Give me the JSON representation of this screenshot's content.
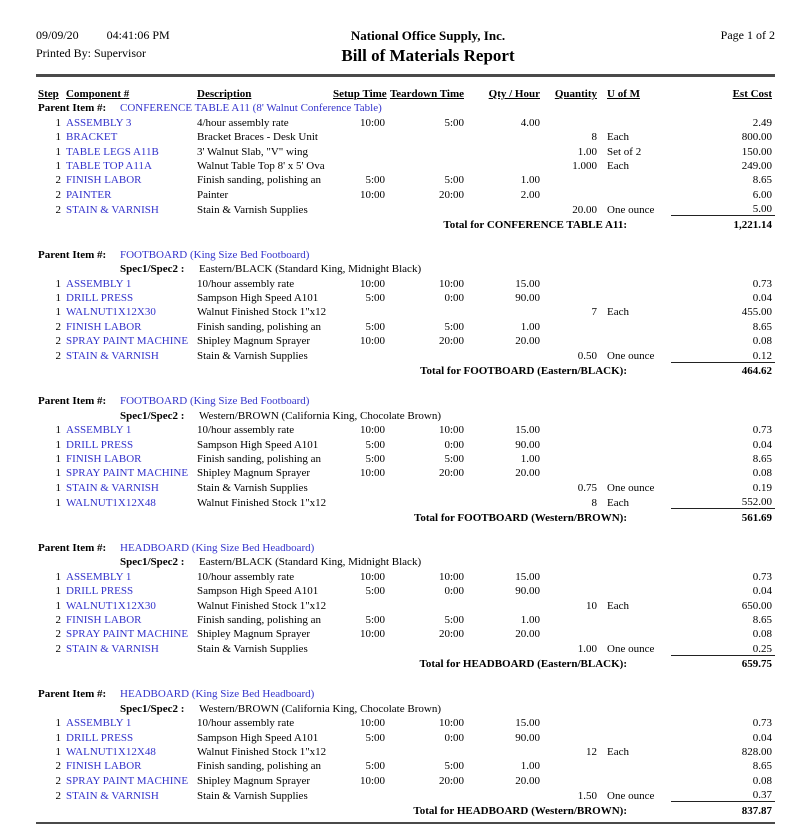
{
  "header": {
    "date": "09/09/20",
    "time": "04:41:06 PM",
    "company": "National Office Supply, Inc.",
    "page": "Page 1 of 2",
    "printed_by": "Printed By: Supervisor",
    "title": "Bill of Materials Report"
  },
  "colors": {
    "link_blue": "#3333cc",
    "rule_gray": "#4a4a4a"
  },
  "columns": [
    "Step",
    "Component #",
    "Description",
    "Setup Time",
    "Teardown Time",
    "Qty / Hour",
    "Quantity",
    "U of M",
    "Est Cost"
  ],
  "report": {
    "parent_item_label": "Parent Item #:",
    "spec_label": "Spec1/Spec2 :",
    "sections": [
      {
        "parent_item": "CONFERENCE TABLE A11 (8' Walnut Conference Table)",
        "spec": null,
        "rows": [
          {
            "step": "1",
            "component": "ASSEMBLY 3",
            "description": "4/hour assembly rate",
            "setup_time": "10:00",
            "teardown_time": "5:00",
            "qty_hour": "4.00",
            "quantity": "",
            "uofm": "",
            "est_cost": "2.49"
          },
          {
            "step": "1",
            "component": "BRACKET",
            "description": "Bracket Braces - Desk Unit",
            "setup_time": "",
            "teardown_time": "",
            "qty_hour": "",
            "quantity": "8",
            "uofm": "Each",
            "est_cost": "800.00"
          },
          {
            "step": "1",
            "component": "TABLE LEGS A11B",
            "description": "3' Walnut Slab, \"V\" wing",
            "setup_time": "",
            "teardown_time": "",
            "qty_hour": "",
            "quantity": "1.00",
            "uofm": "Set of 2",
            "est_cost": "150.00"
          },
          {
            "step": "1",
            "component": "TABLE TOP A11A",
            "description": "Walnut Table Top 8' x 5' Ova",
            "setup_time": "",
            "teardown_time": "",
            "qty_hour": "",
            "quantity": "1.000",
            "uofm": "Each",
            "est_cost": "249.00"
          },
          {
            "step": "2",
            "component": "FINISH LABOR",
            "description": "Finish sanding, polishing an",
            "setup_time": "5:00",
            "teardown_time": "5:00",
            "qty_hour": "1.00",
            "quantity": "",
            "uofm": "",
            "est_cost": "8.65"
          },
          {
            "step": "2",
            "component": "PAINTER",
            "description": "Painter",
            "setup_time": "10:00",
            "teardown_time": "20:00",
            "qty_hour": "2.00",
            "quantity": "",
            "uofm": "",
            "est_cost": "6.00"
          },
          {
            "step": "2",
            "component": "STAIN & VARNISH",
            "description": "Stain & Varnish Supplies",
            "setup_time": "",
            "teardown_time": "",
            "qty_hour": "",
            "quantity": "20.00",
            "uofm": "One ounce",
            "est_cost": "5.00"
          }
        ],
        "total_label": "Total for CONFERENCE TABLE A11:",
        "total": "1,221.14"
      },
      {
        "parent_item": "FOOTBOARD (King Size Bed Footboard)",
        "spec": "Eastern/BLACK (Standard King, Midnight Black)",
        "rows": [
          {
            "step": "1",
            "component": "ASSEMBLY 1",
            "description": "10/hour assembly rate",
            "setup_time": "10:00",
            "teardown_time": "10:00",
            "qty_hour": "15.00",
            "quantity": "",
            "uofm": "",
            "est_cost": "0.73"
          },
          {
            "step": "1",
            "component": "DRILL PRESS",
            "description": "Sampson High Speed A101",
            "setup_time": "5:00",
            "teardown_time": "0:00",
            "qty_hour": "90.00",
            "quantity": "",
            "uofm": "",
            "est_cost": "0.04"
          },
          {
            "step": "1",
            "component": "WALNUT1X12X30",
            "description": "Walnut Finished Stock 1\"x12",
            "setup_time": "",
            "teardown_time": "",
            "qty_hour": "",
            "quantity": "7",
            "uofm": "Each",
            "est_cost": "455.00"
          },
          {
            "step": "2",
            "component": "FINISH LABOR",
            "description": "Finish sanding, polishing an",
            "setup_time": "5:00",
            "teardown_time": "5:00",
            "qty_hour": "1.00",
            "quantity": "",
            "uofm": "",
            "est_cost": "8.65"
          },
          {
            "step": "2",
            "component": "SPRAY PAINT MACHINE",
            "description": "Shipley Magnum Sprayer",
            "setup_time": "10:00",
            "teardown_time": "20:00",
            "qty_hour": "20.00",
            "quantity": "",
            "uofm": "",
            "est_cost": "0.08"
          },
          {
            "step": "2",
            "component": "STAIN & VARNISH",
            "description": "Stain & Varnish Supplies",
            "setup_time": "",
            "teardown_time": "",
            "qty_hour": "",
            "quantity": "0.50",
            "uofm": "One ounce",
            "est_cost": "0.12"
          }
        ],
        "total_label": "Total for FOOTBOARD (Eastern/BLACK):",
        "total": "464.62"
      },
      {
        "parent_item": "FOOTBOARD (King Size Bed Footboard)",
        "spec": "Western/BROWN (California King, Chocolate Brown)",
        "rows": [
          {
            "step": "1",
            "component": "ASSEMBLY 1",
            "description": "10/hour assembly rate",
            "setup_time": "10:00",
            "teardown_time": "10:00",
            "qty_hour": "15.00",
            "quantity": "",
            "uofm": "",
            "est_cost": "0.73"
          },
          {
            "step": "1",
            "component": "DRILL PRESS",
            "description": "Sampson High Speed A101",
            "setup_time": "5:00",
            "teardown_time": "0:00",
            "qty_hour": "90.00",
            "quantity": "",
            "uofm": "",
            "est_cost": "0.04"
          },
          {
            "step": "1",
            "component": "FINISH LABOR",
            "description": "Finish sanding, polishing an",
            "setup_time": "5:00",
            "teardown_time": "5:00",
            "qty_hour": "1.00",
            "quantity": "",
            "uofm": "",
            "est_cost": "8.65"
          },
          {
            "step": "1",
            "component": "SPRAY PAINT MACHINE",
            "description": "Shipley Magnum Sprayer",
            "setup_time": "10:00",
            "teardown_time": "20:00",
            "qty_hour": "20.00",
            "quantity": "",
            "uofm": "",
            "est_cost": "0.08"
          },
          {
            "step": "1",
            "component": "STAIN & VARNISH",
            "description": "Stain & Varnish Supplies",
            "setup_time": "",
            "teardown_time": "",
            "qty_hour": "",
            "quantity": "0.75",
            "uofm": "One ounce",
            "est_cost": "0.19"
          },
          {
            "step": "1",
            "component": "WALNUT1X12X48",
            "description": "Walnut Finished Stock 1\"x12",
            "setup_time": "",
            "teardown_time": "",
            "qty_hour": "",
            "quantity": "8",
            "uofm": "Each",
            "est_cost": "552.00"
          }
        ],
        "total_label": "Total for FOOTBOARD (Western/BROWN):",
        "total": "561.69"
      },
      {
        "parent_item": "HEADBOARD (King Size Bed Headboard)",
        "spec": "Eastern/BLACK (Standard King, Midnight Black)",
        "rows": [
          {
            "step": "1",
            "component": "ASSEMBLY 1",
            "description": "10/hour assembly rate",
            "setup_time": "10:00",
            "teardown_time": "10:00",
            "qty_hour": "15.00",
            "quantity": "",
            "uofm": "",
            "est_cost": "0.73"
          },
          {
            "step": "1",
            "component": "DRILL PRESS",
            "description": "Sampson High Speed A101",
            "setup_time": "5:00",
            "teardown_time": "0:00",
            "qty_hour": "90.00",
            "quantity": "",
            "uofm": "",
            "est_cost": "0.04"
          },
          {
            "step": "1",
            "component": "WALNUT1X12X30",
            "description": "Walnut Finished Stock 1\"x12",
            "setup_time": "",
            "teardown_time": "",
            "qty_hour": "",
            "quantity": "10",
            "uofm": "Each",
            "est_cost": "650.00"
          },
          {
            "step": "2",
            "component": "FINISH LABOR",
            "description": "Finish sanding, polishing an",
            "setup_time": "5:00",
            "teardown_time": "5:00",
            "qty_hour": "1.00",
            "quantity": "",
            "uofm": "",
            "est_cost": "8.65"
          },
          {
            "step": "2",
            "component": "SPRAY PAINT MACHINE",
            "description": "Shipley Magnum Sprayer",
            "setup_time": "10:00",
            "teardown_time": "20:00",
            "qty_hour": "20.00",
            "quantity": "",
            "uofm": "",
            "est_cost": "0.08"
          },
          {
            "step": "2",
            "component": "STAIN & VARNISH",
            "description": "Stain & Varnish Supplies",
            "setup_time": "",
            "teardown_time": "",
            "qty_hour": "",
            "quantity": "1.00",
            "uofm": "One ounce",
            "est_cost": "0.25"
          }
        ],
        "total_label": "Total for HEADBOARD (Eastern/BLACK):",
        "total": "659.75"
      },
      {
        "parent_item": "HEADBOARD (King Size Bed Headboard)",
        "spec": "Western/BROWN (California King, Chocolate Brown)",
        "rows": [
          {
            "step": "1",
            "component": "ASSEMBLY 1",
            "description": "10/hour assembly rate",
            "setup_time": "10:00",
            "teardown_time": "10:00",
            "qty_hour": "15.00",
            "quantity": "",
            "uofm": "",
            "est_cost": "0.73"
          },
          {
            "step": "1",
            "component": "DRILL PRESS",
            "description": "Sampson High Speed A101",
            "setup_time": "5:00",
            "teardown_time": "0:00",
            "qty_hour": "90.00",
            "quantity": "",
            "uofm": "",
            "est_cost": "0.04"
          },
          {
            "step": "1",
            "component": "WALNUT1X12X48",
            "description": "Walnut Finished Stock 1\"x12",
            "setup_time": "",
            "teardown_time": "",
            "qty_hour": "",
            "quantity": "12",
            "uofm": "Each",
            "est_cost": "828.00"
          },
          {
            "step": "2",
            "component": "FINISH LABOR",
            "description": "Finish sanding, polishing an",
            "setup_time": "5:00",
            "teardown_time": "5:00",
            "qty_hour": "1.00",
            "quantity": "",
            "uofm": "",
            "est_cost": "8.65"
          },
          {
            "step": "2",
            "component": "SPRAY PAINT MACHINE",
            "description": "Shipley Magnum Sprayer",
            "setup_time": "10:00",
            "teardown_time": "20:00",
            "qty_hour": "20.00",
            "quantity": "",
            "uofm": "",
            "est_cost": "0.08"
          },
          {
            "step": "2",
            "component": "STAIN & VARNISH",
            "description": "Stain & Varnish Supplies",
            "setup_time": "",
            "teardown_time": "",
            "qty_hour": "",
            "quantity": "1.50",
            "uofm": "One ounce",
            "est_cost": "0.37"
          }
        ],
        "total_label": "Total for HEADBOARD (Western/BROWN):",
        "total": "837.87"
      }
    ]
  }
}
